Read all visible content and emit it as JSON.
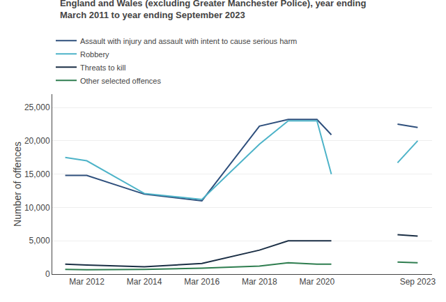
{
  "chart_data": {
    "type": "line",
    "title": "England and Wales (excluding Greater Manchester Police), year ending",
    "subtitle": "March 2011 to year ending September 2023",
    "ylabel": "Number of offences",
    "x": [
      2011.25,
      2012,
      2014,
      2016,
      2018,
      2019,
      2020,
      2020.5,
      2021.0,
      2022.8,
      2023.5
    ],
    "series": [
      {
        "name": "Assault with injury and assault with intent to cause serious harm",
        "color": "#2e4f7c",
        "line_style": "solid",
        "values": [
          14800,
          14800,
          12000,
          11000,
          22200,
          23200,
          23200,
          20900,
          null,
          22500,
          22000
        ]
      },
      {
        "name": "Robbery",
        "color": "#4db3c8",
        "line_style": "solid",
        "values": [
          17500,
          17000,
          12100,
          11200,
          19500,
          23000,
          23000,
          15000,
          null,
          16700,
          20000
        ]
      },
      {
        "name": "Threats to kill",
        "color": "#1a2e44",
        "line_style": "solid",
        "values": [
          1500,
          1350,
          1100,
          1600,
          3600,
          5000,
          5000,
          5000,
          null,
          5900,
          5700
        ]
      },
      {
        "name": "Other selected offences",
        "color": "#2e7d4f",
        "line_style": "solid",
        "values": [
          700,
          650,
          700,
          900,
          1200,
          1700,
          1500,
          1500,
          null,
          1800,
          1700
        ]
      }
    ],
    "xlim": [
      2010.8,
      2024.0
    ],
    "xticks": [
      {
        "value": 2012,
        "label": "Mar 2012"
      },
      {
        "value": 2014,
        "label": "Mar 2014"
      },
      {
        "value": 2016,
        "label": "Mar 2016"
      },
      {
        "value": 2018,
        "label": "Mar 2018"
      },
      {
        "value": 2020,
        "label": "Mar 2020"
      },
      {
        "value": 2023.5,
        "label": "Sep 2023"
      }
    ],
    "ylim": [
      0,
      27000
    ],
    "yticks": [
      0,
      {
        "value": 5000,
        "label": "5,000"
      },
      {
        "value": 10000,
        "label": "10,000"
      },
      {
        "value": 15000,
        "label": "15,000"
      },
      {
        "value": 20000,
        "label": "20,000"
      },
      {
        "value": 25000,
        "label": "25,000"
      }
    ],
    "grid": true,
    "legend": "top"
  }
}
